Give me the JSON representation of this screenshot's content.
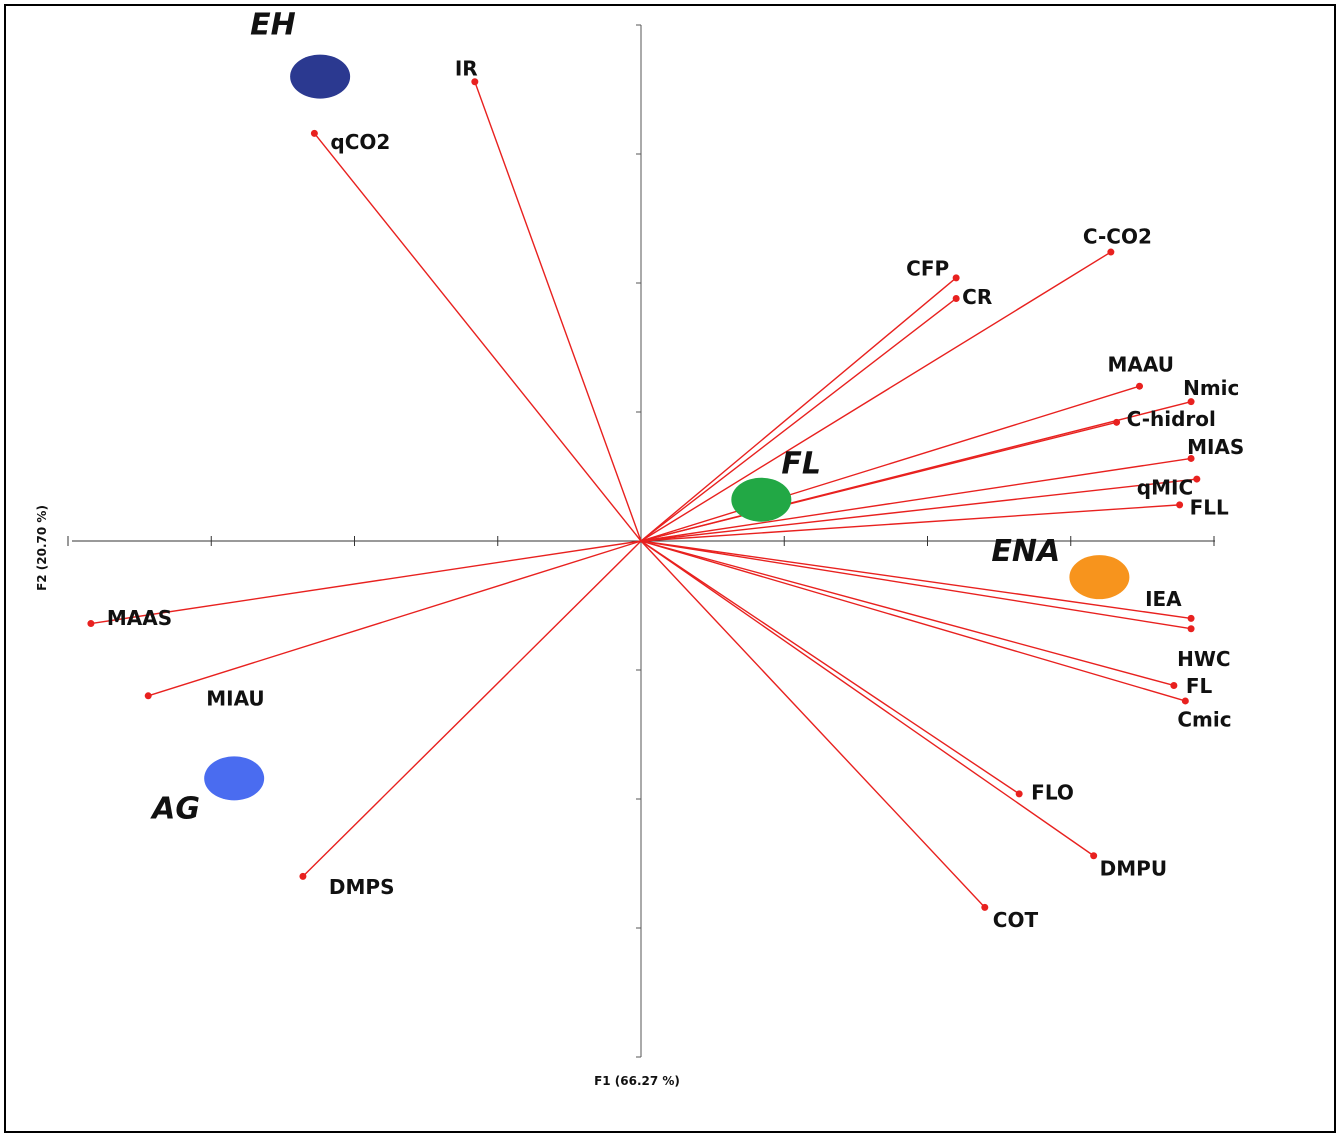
{
  "chart_data": {
    "type": "biplot",
    "xlabel": "F1 (66.27 %)",
    "ylabel": "F2 (20.70 %)",
    "xlim": [
      -1.0,
      1.0
    ],
    "ylim": [
      -1.0,
      1.0
    ],
    "line_color": "#e8211f",
    "point_color": "#e8211f",
    "variables": [
      {
        "name": "IR",
        "x": -0.29,
        "y": 0.89
      },
      {
        "name": "qCO2",
        "x": -0.57,
        "y": 0.79
      },
      {
        "name": "C-CO2",
        "x": 0.82,
        "y": 0.56
      },
      {
        "name": "CFP",
        "x": 0.55,
        "y": 0.51
      },
      {
        "name": "CR",
        "x": 0.55,
        "y": 0.47
      },
      {
        "name": "MAAU",
        "x": 0.87,
        "y": 0.3
      },
      {
        "name": "Nmic",
        "x": 0.96,
        "y": 0.27
      },
      {
        "name": "C-hidrol",
        "x": 0.83,
        "y": 0.23
      },
      {
        "name": "MIAS",
        "x": 0.96,
        "y": 0.16
      },
      {
        "name": "qMIC",
        "x": 0.97,
        "y": 0.12
      },
      {
        "name": "FLL",
        "x": 0.94,
        "y": 0.07
      },
      {
        "name": "IEA",
        "x": 0.96,
        "y": -0.15
      },
      {
        "name": "HWC",
        "x": 0.96,
        "y": -0.17
      },
      {
        "name": "FL",
        "x": 0.93,
        "y": -0.28
      },
      {
        "name": "Cmic",
        "x": 0.95,
        "y": -0.31
      },
      {
        "name": "FLO",
        "x": 0.66,
        "y": -0.49
      },
      {
        "name": "DMPU",
        "x": 0.79,
        "y": -0.61
      },
      {
        "name": "COT",
        "x": 0.6,
        "y": -0.71
      },
      {
        "name": "MAAS",
        "x": -0.96,
        "y": -0.16
      },
      {
        "name": "MIAU",
        "x": -0.86,
        "y": -0.3
      },
      {
        "name": "DMPS",
        "x": -0.59,
        "y": -0.65
      }
    ],
    "groups": [
      {
        "name": "EH",
        "x": -0.56,
        "y": 0.9,
        "color": "#2b3990"
      },
      {
        "name": "FL",
        "x": 0.21,
        "y": 0.08,
        "color": "#22a845"
      },
      {
        "name": "ENA",
        "x": 0.8,
        "y": -0.07,
        "color": "#f7941d"
      },
      {
        "name": "AG",
        "x": -0.71,
        "y": -0.46,
        "color": "#4a6cf0"
      }
    ]
  }
}
